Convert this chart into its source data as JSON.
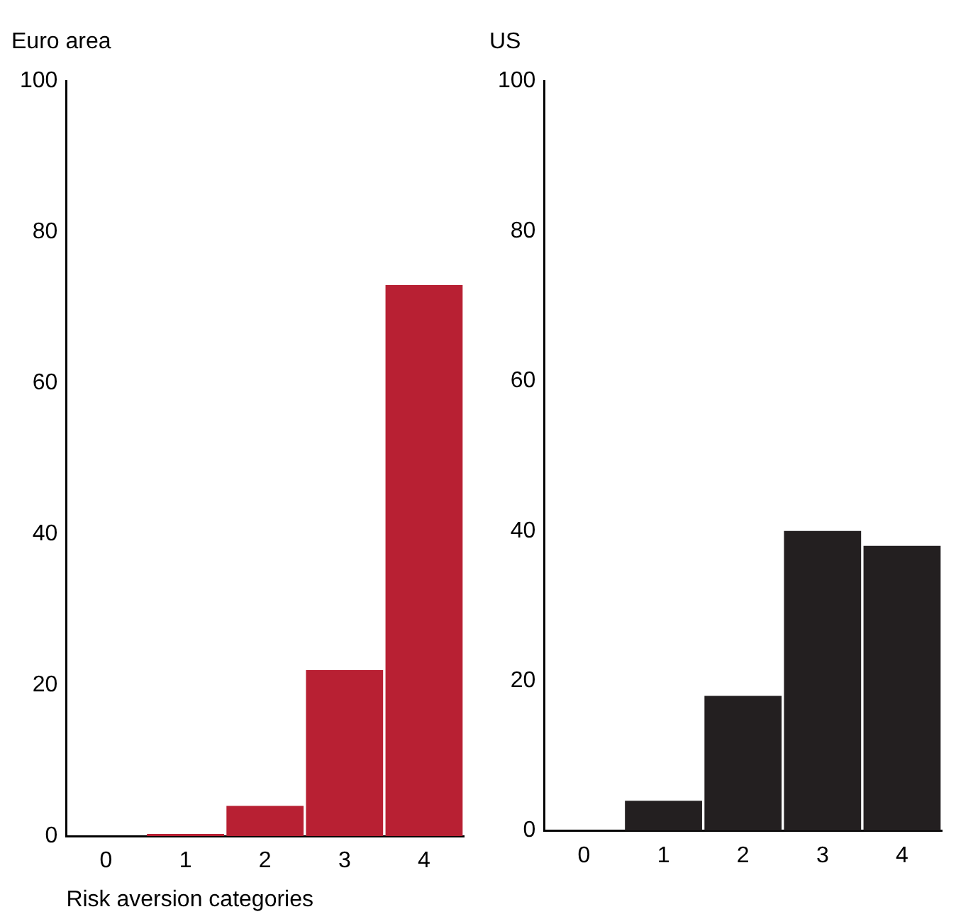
{
  "chart_data": [
    {
      "type": "bar",
      "title": "Euro area",
      "xlabel": "Risk aversion categories",
      "categories": [
        "0",
        "1",
        "2",
        "3",
        "4"
      ],
      "values": [
        0,
        0.3,
        4,
        22,
        73
      ],
      "color": "#b82033",
      "ylim": [
        0,
        100
      ],
      "yticks": [
        0,
        20,
        40,
        60,
        80,
        100
      ],
      "grid": false,
      "legend": false
    },
    {
      "type": "bar",
      "title": "US",
      "categories": [
        "0",
        "1",
        "2",
        "3",
        "4"
      ],
      "values": [
        0,
        4,
        18,
        40,
        38
      ],
      "color": "#231f20",
      "ylim": [
        0,
        100
      ],
      "yticks": [
        0,
        20,
        40,
        60,
        80,
        100
      ],
      "grid": false,
      "legend": false
    }
  ]
}
